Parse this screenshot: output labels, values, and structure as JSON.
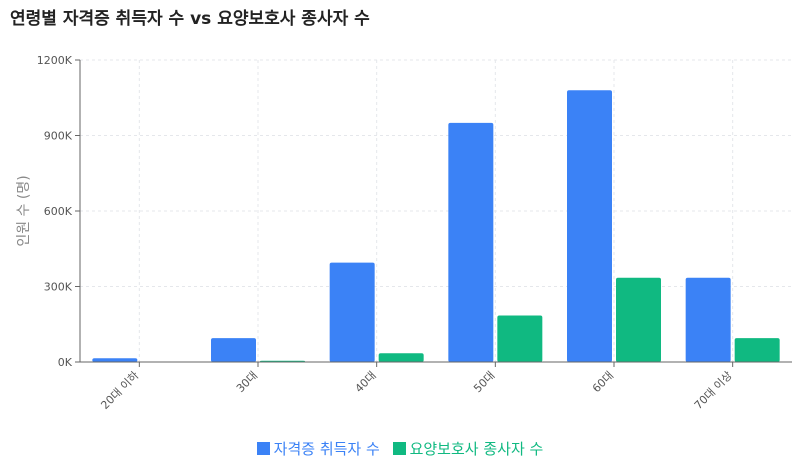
{
  "title": "연령별 자격증 취득자 수 vs 요양보호사 종사자 수",
  "chart_data": {
    "type": "bar",
    "categories": [
      "20대 이하",
      "30대",
      "40대",
      "50대",
      "60대",
      "70대 이상"
    ],
    "series": [
      {
        "name": "자격증 취득자 수",
        "color": "#3b82f6",
        "values": [
          15000,
          95000,
          395000,
          950000,
          1080000,
          335000
        ]
      },
      {
        "name": "요양보호사 종사자 수",
        "color": "#10b981",
        "values": [
          1000,
          5000,
          35000,
          185000,
          335000,
          95000
        ]
      }
    ],
    "ylabel": "인원 수 (명)",
    "ylim": [
      0,
      1200000
    ],
    "yticks": [
      0,
      300000,
      600000,
      900000,
      1200000
    ],
    "ytick_labels": [
      "0K",
      "300K",
      "600K",
      "900K",
      "1200K"
    ],
    "grid": true,
    "legend_position": "bottom"
  }
}
